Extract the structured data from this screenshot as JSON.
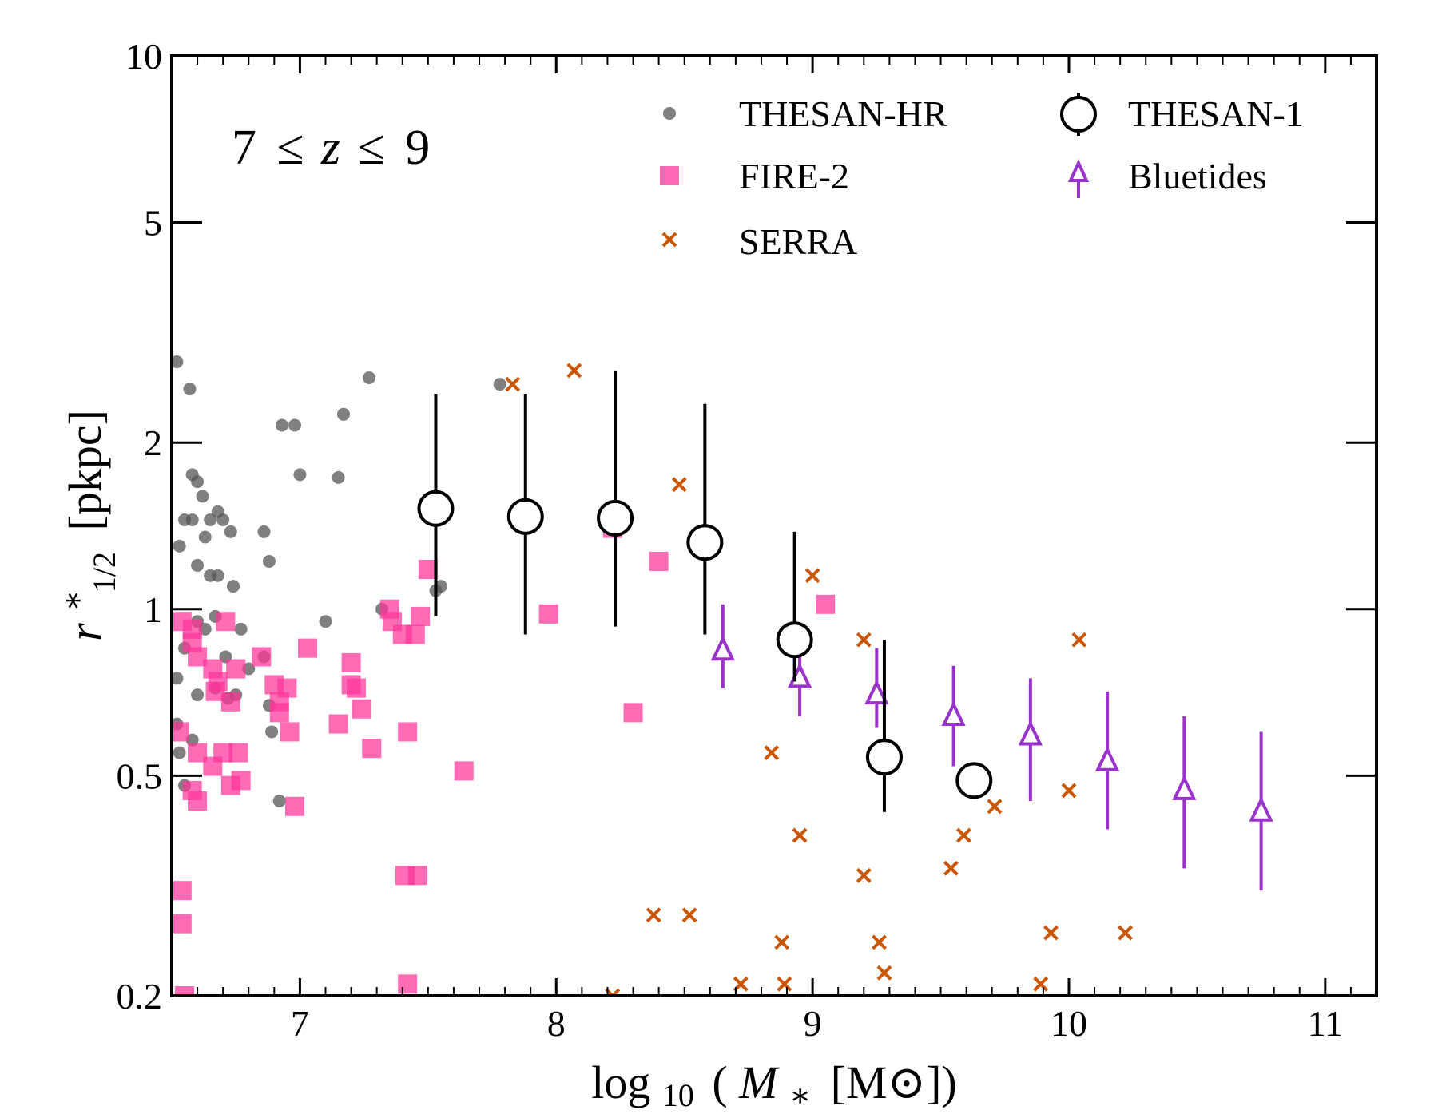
{
  "chart_data": {
    "type": "scatter",
    "title": "",
    "annotation": "7 ≤ z ≤ 9",
    "annotation_parts": {
      "lhs": "7",
      "le1": "≤",
      "var": "z",
      "le2": "≤",
      "rhs": "9"
    },
    "xlabel": "log10 (M* [M⊙])",
    "xlabel_parts": {
      "log": "log",
      "sub10": "10",
      "open": "(",
      "m": "M",
      "star": "∗",
      "unit": "[M⊙])"
    },
    "ylabel": "r*1/2 [pkpc]",
    "ylabel_parts": {
      "r": "r",
      "sup": "∗",
      "sub": "1/2",
      "unit": "[pkpc]"
    },
    "xlim": [
      6.5,
      11.2
    ],
    "ylim": [
      0.2,
      10
    ],
    "yscale": "log",
    "grid": false,
    "legend_position": "top-right",
    "x_ticks": [
      7,
      8,
      9,
      10,
      11
    ],
    "x_tick_labels": [
      "7",
      "8",
      "9",
      "10",
      "11"
    ],
    "y_ticks": [
      0.2,
      0.5,
      1,
      2,
      5,
      10
    ],
    "y_tick_labels": [
      "0.2",
      "0.5",
      "1",
      "2",
      "5",
      "10"
    ],
    "colors": {
      "thesan_hr": "#555555",
      "fire2": "#ff3399",
      "serra": "#cc5500",
      "thesan1": "#000000",
      "bluetides": "#9933cc"
    },
    "series": [
      {
        "name": "THESAN-HR",
        "marker": "circle",
        "points": [
          [
            6.52,
            2.8
          ],
          [
            6.55,
            1.45
          ],
          [
            6.57,
            2.5
          ],
          [
            6.58,
            1.75
          ],
          [
            6.6,
            1.7
          ],
          [
            6.62,
            1.6
          ],
          [
            6.63,
            1.35
          ],
          [
            6.65,
            1.45
          ],
          [
            6.68,
            1.5
          ],
          [
            6.7,
            1.45
          ],
          [
            6.73,
            1.38
          ],
          [
            6.58,
            1.45
          ],
          [
            6.53,
            1.3
          ],
          [
            6.6,
            1.2
          ],
          [
            6.65,
            1.15
          ],
          [
            6.68,
            1.15
          ],
          [
            6.74,
            1.1
          ],
          [
            6.6,
            0.95
          ],
          [
            6.63,
            0.92
          ],
          [
            6.67,
            0.97
          ],
          [
            6.71,
            0.82
          ],
          [
            6.77,
            0.92
          ],
          [
            6.8,
            0.78
          ],
          [
            6.86,
            0.82
          ],
          [
            6.88,
            0.67
          ],
          [
            6.55,
            0.85
          ],
          [
            6.52,
            0.75
          ],
          [
            6.6,
            0.7
          ],
          [
            6.67,
            0.72
          ],
          [
            6.72,
            0.69
          ],
          [
            6.75,
            0.7
          ],
          [
            6.58,
            0.58
          ],
          [
            6.52,
            0.62
          ],
          [
            6.53,
            0.55
          ],
          [
            6.89,
            0.6
          ],
          [
            6.92,
            0.45
          ],
          [
            6.55,
            0.48
          ],
          [
            6.86,
            1.38
          ],
          [
            6.88,
            1.22
          ],
          [
            6.93,
            2.15
          ],
          [
            6.98,
            2.15
          ],
          [
            7.0,
            1.75
          ],
          [
            7.1,
            0.95
          ],
          [
            7.15,
            1.73
          ],
          [
            7.17,
            2.25
          ],
          [
            7.27,
            2.62
          ],
          [
            7.32,
            1.0
          ],
          [
            7.78,
            2.55
          ],
          [
            7.53,
            1.08
          ],
          [
            7.55,
            1.1
          ]
        ]
      },
      {
        "name": "FIRE-2",
        "marker": "square",
        "points": [
          [
            6.54,
            0.95
          ],
          [
            6.58,
            0.92
          ],
          [
            6.58,
            0.87
          ],
          [
            6.6,
            0.82
          ],
          [
            6.66,
            0.78
          ],
          [
            6.68,
            0.74
          ],
          [
            6.71,
            0.95
          ],
          [
            6.73,
            0.68
          ],
          [
            6.75,
            0.78
          ],
          [
            6.67,
            0.71
          ],
          [
            6.85,
            0.82
          ],
          [
            6.9,
            0.73
          ],
          [
            6.92,
            0.68
          ],
          [
            6.95,
            0.72
          ],
          [
            6.96,
            0.6
          ],
          [
            6.92,
            0.65
          ],
          [
            7.03,
            0.85
          ],
          [
            6.53,
            0.6
          ],
          [
            6.6,
            0.55
          ],
          [
            6.66,
            0.52
          ],
          [
            6.7,
            0.55
          ],
          [
            6.73,
            0.48
          ],
          [
            6.77,
            0.49
          ],
          [
            6.76,
            0.55
          ],
          [
            6.58,
            0.47
          ],
          [
            6.6,
            0.45
          ],
          [
            6.98,
            0.44
          ],
          [
            6.54,
            0.31
          ],
          [
            6.54,
            0.27
          ],
          [
            6.55,
            0.2
          ],
          [
            7.15,
            0.62
          ],
          [
            7.2,
            0.8
          ],
          [
            7.22,
            0.72
          ],
          [
            7.24,
            0.66
          ],
          [
            7.2,
            0.73
          ],
          [
            7.28,
            0.56
          ],
          [
            7.35,
            1.0
          ],
          [
            7.36,
            0.95
          ],
          [
            7.4,
            0.9
          ],
          [
            7.45,
            0.9
          ],
          [
            7.47,
            0.97
          ],
          [
            7.42,
            0.6
          ],
          [
            7.5,
            1.18
          ],
          [
            7.64,
            0.51
          ],
          [
            7.41,
            0.33
          ],
          [
            7.46,
            0.33
          ],
          [
            7.42,
            0.21
          ],
          [
            7.97,
            0.98
          ],
          [
            8.22,
            1.4
          ],
          [
            8.3,
            0.65
          ],
          [
            8.4,
            1.22
          ],
          [
            9.05,
            1.02
          ]
        ]
      },
      {
        "name": "SERRA",
        "marker": "x",
        "points": [
          [
            7.83,
            2.55
          ],
          [
            8.07,
            2.7
          ],
          [
            8.22,
            0.2
          ],
          [
            8.38,
            0.28
          ],
          [
            8.48,
            1.68
          ],
          [
            8.52,
            0.28
          ],
          [
            8.72,
            0.21
          ],
          [
            8.84,
            0.55
          ],
          [
            8.88,
            0.25
          ],
          [
            8.89,
            0.21
          ],
          [
            8.95,
            0.39
          ],
          [
            9.0,
            1.15
          ],
          [
            9.2,
            0.33
          ],
          [
            9.2,
            0.88
          ],
          [
            9.26,
            0.25
          ],
          [
            9.28,
            0.22
          ],
          [
            9.54,
            0.34
          ],
          [
            9.59,
            0.39
          ],
          [
            9.71,
            0.44
          ],
          [
            9.89,
            0.21
          ],
          [
            9.93,
            0.26
          ],
          [
            10.0,
            0.47
          ],
          [
            10.04,
            0.88
          ],
          [
            10.22,
            0.26
          ]
        ]
      },
      {
        "name": "THESAN-1",
        "marker": "open-circle",
        "points": [
          [
            7.53,
            1.52,
            0.97,
            2.45
          ],
          [
            7.88,
            1.47,
            0.9,
            2.45
          ],
          [
            8.23,
            1.46,
            0.93,
            2.7
          ],
          [
            8.58,
            1.32,
            0.9,
            2.35
          ],
          [
            8.93,
            0.88,
            0.74,
            1.38
          ],
          [
            9.28,
            0.54,
            0.43,
            0.88
          ],
          [
            9.63,
            0.49,
            0.48,
            0.5
          ]
        ]
      },
      {
        "name": "Bluetides",
        "marker": "open-triangle",
        "points": [
          [
            8.65,
            0.84,
            0.72,
            1.02
          ],
          [
            8.95,
            0.75,
            0.64,
            0.85
          ],
          [
            9.25,
            0.7,
            0.61,
            0.85
          ],
          [
            9.55,
            0.64,
            0.52,
            0.79
          ],
          [
            9.85,
            0.59,
            0.45,
            0.75
          ],
          [
            10.15,
            0.53,
            0.4,
            0.71
          ],
          [
            10.45,
            0.47,
            0.34,
            0.64
          ],
          [
            10.75,
            0.43,
            0.31,
            0.6
          ]
        ]
      }
    ],
    "legend": [
      {
        "name": "THESAN-HR",
        "marker": "circle"
      },
      {
        "name": "FIRE-2",
        "marker": "square"
      },
      {
        "name": "SERRA",
        "marker": "x"
      },
      {
        "name": "THESAN-1",
        "marker": "open-circle"
      },
      {
        "name": "Bluetides",
        "marker": "open-triangle"
      }
    ]
  }
}
